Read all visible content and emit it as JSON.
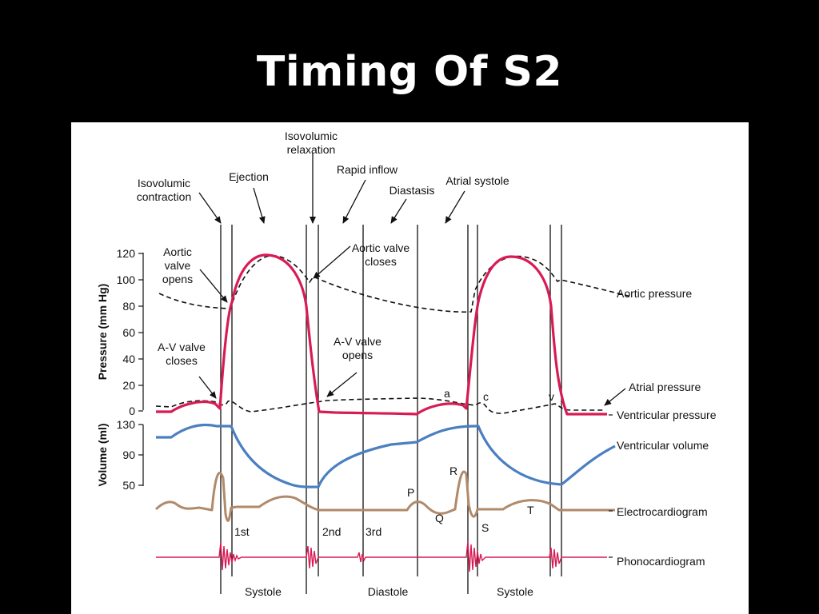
{
  "title": "Timing Of S2",
  "colors": {
    "ventricular_pressure": "#d81b55",
    "ventricular_volume": "#4a7fc1",
    "electrocardiogram": "#b08a6a",
    "phonocardiogram": "#d81b55",
    "dashed": "#111111"
  },
  "phases": {
    "isovolumic_contraction": "Isovolumic\ncontraction",
    "ejection": "Ejection",
    "isovolumic_relaxation": "Isovolumic\nrelaxation",
    "rapid_inflow": "Rapid inflow",
    "diastasis": "Diastasis",
    "atrial_systole": "Atrial systole"
  },
  "events": {
    "aortic_valve_opens": "Aortic\nvalve\nopens",
    "aortic_valve_closes": "Aortic valve\ncloses",
    "av_valve_closes": "A-V valve\ncloses",
    "av_valve_opens": "A-V valve\nopens"
  },
  "axes": {
    "pressure_label": "Pressure (mm Hg)",
    "pressure_ticks": [
      "120",
      "100",
      "80",
      "60",
      "40",
      "20",
      "0"
    ],
    "volume_label": "Volume (ml)",
    "volume_ticks": [
      "130",
      "90",
      "50"
    ]
  },
  "traces": {
    "aortic_pressure": "Aortic pressure",
    "atrial_pressure": "Atrial pressure",
    "ventricular_pressure": "Ventricular pressure",
    "ventricular_volume": "Ventricular volume",
    "electrocardiogram": "Electrocardiogram",
    "phonocardiogram": "Phonocardiogram"
  },
  "wave_labels": {
    "a": "a",
    "c": "c",
    "v": "v",
    "P": "P",
    "Q": "Q",
    "R": "R",
    "S": "S",
    "T": "T"
  },
  "heart_sounds": {
    "first": "1st",
    "second": "2nd",
    "third": "3rd"
  },
  "cycle": {
    "systole_1": "Systole",
    "diastole": "Diastole",
    "systole_2": "Systole"
  }
}
